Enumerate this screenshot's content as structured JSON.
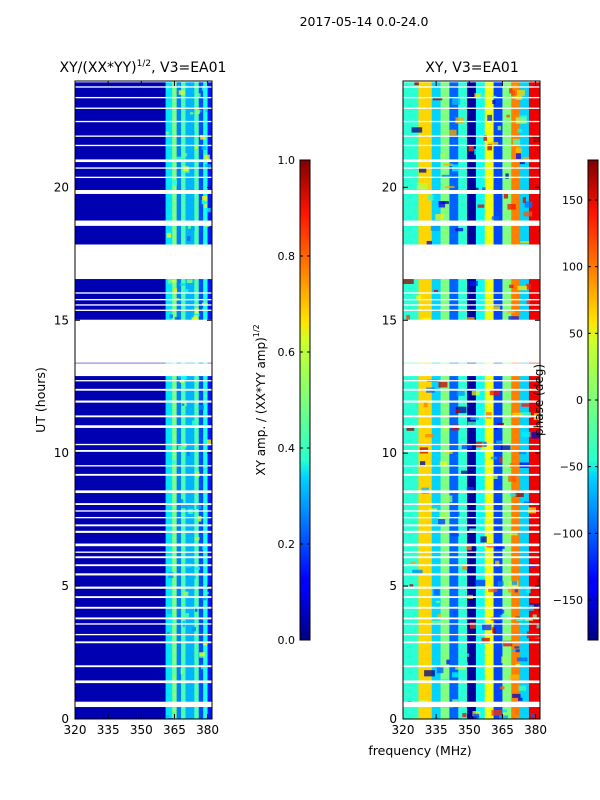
{
  "figure": {
    "suptitle": "2017-05-14 0.0-24.0",
    "xlabel": "frequency (MHz)"
  },
  "chart_data": [
    {
      "type": "heatmap",
      "title": "XY/(XX*YY)",
      "title_superscript": "1/2",
      "title_suffix": ", V3=EA01",
      "ylabel": "UT (hours)",
      "xlim": [
        320,
        382
      ],
      "ylim": [
        0,
        24
      ],
      "xticks": [
        320,
        335,
        350,
        365,
        380
      ],
      "yticks": [
        0,
        5,
        10,
        15,
        20
      ],
      "bands": [
        {
          "from": 320,
          "to": 361,
          "level": 0.05
        },
        {
          "from": 361,
          "to": 364,
          "level": 0.35
        },
        {
          "from": 364,
          "to": 366,
          "level": 0.5
        },
        {
          "from": 366,
          "to": 368,
          "level": 0.25
        },
        {
          "from": 368,
          "to": 370,
          "level": 0.45
        },
        {
          "from": 370,
          "to": 374,
          "level": 0.3
        },
        {
          "from": 374,
          "to": 376,
          "level": 0.45
        },
        {
          "from": 376,
          "to": 378,
          "level": 0.2
        },
        {
          "from": 378,
          "to": 380,
          "level": 0.4
        },
        {
          "from": 380,
          "to": 382,
          "level": 0.15
        }
      ],
      "colorbar": {
        "label": "XY amp. / (XX*YY amp)",
        "label_superscript": "1/2",
        "range": [
          0,
          1
        ],
        "ticks": [
          "0.0",
          "0.2",
          "0.4",
          "0.6",
          "0.8",
          "1.0"
        ]
      }
    },
    {
      "type": "heatmap",
      "title": "XY, V3=EA01",
      "xlim": [
        320,
        382
      ],
      "ylim": [
        0,
        24
      ],
      "xticks": [
        320,
        335,
        350,
        365,
        380
      ],
      "yticks": [
        0,
        5,
        10,
        15,
        20
      ],
      "bands": [
        {
          "from": 320,
          "to": 327,
          "level": -30
        },
        {
          "from": 327,
          "to": 333,
          "level": 60
        },
        {
          "from": 333,
          "to": 337,
          "level": -60
        },
        {
          "from": 337,
          "to": 341,
          "level": 0
        },
        {
          "from": 341,
          "to": 345,
          "level": -100
        },
        {
          "from": 345,
          "to": 349,
          "level": -30
        },
        {
          "from": 349,
          "to": 353,
          "level": -170
        },
        {
          "from": 353,
          "to": 357,
          "level": -40
        },
        {
          "from": 357,
          "to": 361,
          "level": 40
        },
        {
          "from": 361,
          "to": 365,
          "level": -110
        },
        {
          "from": 365,
          "to": 369,
          "level": 0
        },
        {
          "from": 369,
          "to": 373,
          "level": 90
        },
        {
          "from": 373,
          "to": 377,
          "level": -60
        },
        {
          "from": 377,
          "to": 382,
          "level": 140
        }
      ],
      "colorbar": {
        "label": "phase (deg)",
        "range": [
          -180,
          180
        ],
        "ticks": [
          "150",
          "100",
          "50",
          "0",
          "−50",
          "−100",
          "−150"
        ],
        "tick_values": [
          150,
          100,
          50,
          0,
          -50,
          -100,
          -150
        ]
      }
    }
  ],
  "flagged_gaps_ut": [
    [
      0.45,
      0.65
    ],
    [
      1.35,
      1.45
    ],
    [
      1.95,
      2.02
    ],
    [
      2.85,
      2.92
    ],
    [
      3.15,
      3.2
    ],
    [
      3.55,
      3.6
    ],
    [
      3.75,
      3.82
    ],
    [
      4.15,
      4.22
    ],
    [
      4.55,
      4.62
    ],
    [
      4.9,
      4.98
    ],
    [
      5.4,
      5.48
    ],
    [
      5.75,
      5.82
    ],
    [
      6.05,
      6.12
    ],
    [
      6.25,
      6.3
    ],
    [
      6.5,
      6.6
    ],
    [
      7.0,
      7.08
    ],
    [
      7.25,
      7.32
    ],
    [
      7.55,
      7.6
    ],
    [
      7.8,
      7.85
    ],
    [
      8.05,
      8.12
    ],
    [
      8.5,
      8.6
    ],
    [
      9.15,
      9.22
    ],
    [
      9.5,
      9.55
    ],
    [
      10.05,
      10.12
    ],
    [
      10.3,
      10.35
    ],
    [
      10.95,
      11.05
    ],
    [
      11.35,
      11.42
    ],
    [
      11.9,
      11.98
    ],
    [
      12.35,
      12.42
    ],
    [
      12.7,
      12.75
    ],
    [
      12.9,
      13.38
    ],
    [
      13.4,
      15.02
    ],
    [
      15.35,
      15.4
    ],
    [
      15.55,
      15.6
    ],
    [
      15.75,
      15.8
    ],
    [
      16.0,
      16.05
    ],
    [
      16.55,
      17.85
    ],
    [
      18.55,
      18.75
    ],
    [
      19.75,
      19.9
    ],
    [
      20.35,
      20.4
    ],
    [
      20.7,
      20.75
    ],
    [
      20.95,
      21.05
    ],
    [
      21.55,
      21.6
    ],
    [
      21.9,
      21.95
    ],
    [
      22.45,
      22.5
    ],
    [
      22.95,
      23.0
    ],
    [
      23.35,
      23.4
    ],
    [
      23.75,
      23.8
    ],
    [
      23.95,
      24.0
    ]
  ]
}
